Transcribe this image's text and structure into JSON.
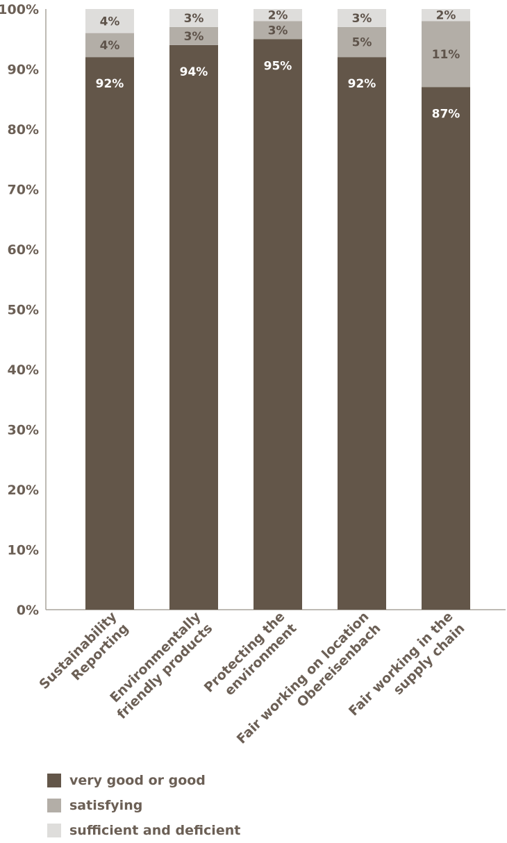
{
  "chart_data": {
    "type": "bar",
    "stacked": true,
    "categories": [
      [
        "Sustainability",
        "Reporting"
      ],
      [
        "Environmentally",
        "friendly products"
      ],
      [
        "Protecting the",
        "environment"
      ],
      [
        "Fair working on location",
        "Obereisenbach"
      ],
      [
        "Fair working in the",
        "supply chain"
      ]
    ],
    "series": [
      {
        "name": "very good or good",
        "values": [
          92,
          94,
          95,
          92,
          87
        ],
        "color": "#635649",
        "label_color": "#ffffff"
      },
      {
        "name": "satisfying",
        "values": [
          4,
          3,
          3,
          5,
          11
        ],
        "color": "#b3aea7",
        "label_color": "#5e534a"
      },
      {
        "name": "sufficient and deficient",
        "values": [
          4,
          3,
          2,
          3,
          2
        ],
        "color": "#dedddb",
        "label_color": "#5e534a"
      }
    ],
    "data_labels": [
      [
        "92%",
        "94%",
        "95%",
        "92%",
        "87%"
      ],
      [
        "4%",
        "3%",
        "3%",
        "5%",
        "11%"
      ],
      [
        "4%",
        "3%",
        "2%",
        "3%",
        "2%"
      ]
    ],
    "yticks": [
      "0%",
      "10%",
      "20%",
      "30%",
      "40%",
      "50%",
      "60%",
      "70%",
      "80%",
      "90%",
      "100%"
    ],
    "ylim": [
      0,
      100
    ],
    "grid": false,
    "legend_position": "bottom-left",
    "title": "",
    "xlabel": "",
    "ylabel": ""
  }
}
